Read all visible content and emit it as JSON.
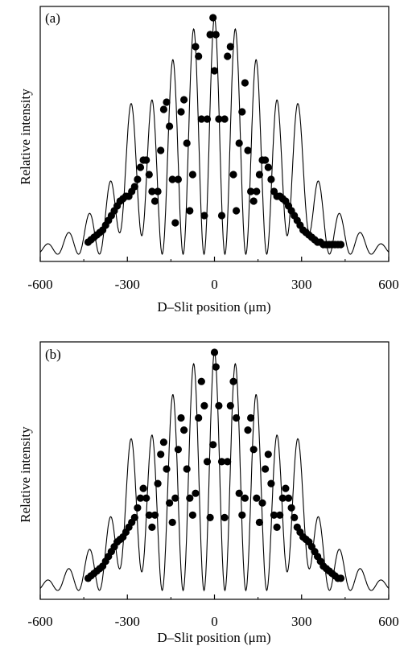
{
  "chart_data": [
    {
      "type": "scatter",
      "panel_label": "(a)",
      "xlabel": "D–Slit position (μm)",
      "ylabel": "Relative intensity",
      "xlim": [
        -600,
        600
      ],
      "ylim": [
        0,
        1.0
      ],
      "xticks": [
        -600,
        -300,
        0,
        300,
        600
      ],
      "xtick_labels": [
        "-600",
        "-300",
        "0",
        "300",
        "600"
      ],
      "grid": false,
      "series": [
        {
          "kind": "points",
          "x": [
            -435,
            -425,
            -415,
            -405,
            -395,
            -385,
            -375,
            -365,
            -355,
            -345,
            -335,
            -325,
            -315,
            -305,
            -295,
            -285,
            -275,
            -265,
            -255,
            -245,
            -235,
            -225,
            -215,
            -205,
            -195,
            -185,
            -175,
            -165,
            -155,
            -145,
            -135,
            -125,
            -115,
            -105,
            -95,
            -85,
            -75,
            -65,
            -55,
            -45,
            -35,
            -25,
            -15,
            -5,
            0,
            5,
            15,
            25,
            35,
            45,
            55,
            65,
            75,
            85,
            95,
            105,
            115,
            125,
            135,
            145,
            155,
            165,
            175,
            185,
            195,
            205,
            215,
            225,
            235,
            245,
            255,
            265,
            275,
            285,
            295,
            305,
            315,
            325,
            335,
            345,
            355,
            365,
            375,
            385,
            395,
            405,
            415,
            425,
            435
          ],
          "y": [
            0.07,
            0.08,
            0.09,
            0.1,
            0.11,
            0.12,
            0.14,
            0.16,
            0.18,
            0.2,
            0.22,
            0.24,
            0.25,
            0.26,
            0.26,
            0.28,
            0.3,
            0.33,
            0.38,
            0.41,
            0.41,
            0.35,
            0.28,
            0.24,
            0.28,
            0.45,
            0.62,
            0.65,
            0.55,
            0.33,
            0.15,
            0.33,
            0.61,
            0.66,
            0.48,
            0.2,
            0.35,
            0.88,
            0.84,
            0.58,
            0.18,
            0.58,
            0.93,
            1.0,
            0.78,
            0.93,
            0.58,
            0.18,
            0.58,
            0.84,
            0.88,
            0.35,
            0.2,
            0.48,
            0.61,
            0.73,
            0.45,
            0.28,
            0.24,
            0.28,
            0.35,
            0.41,
            0.41,
            0.38,
            0.33,
            0.28,
            0.26,
            0.26,
            0.25,
            0.24,
            0.22,
            0.2,
            0.18,
            0.16,
            0.14,
            0.12,
            0.11,
            0.1,
            0.09,
            0.08,
            0.07,
            0.07,
            0.06,
            0.06,
            0.06,
            0.06,
            0.06,
            0.06,
            0.06
          ]
        },
        {
          "kind": "curve",
          "envelope_width": 230,
          "fringe_period": 72,
          "baseline": 0.02,
          "side_bump_pos": [
            -290,
            290
          ],
          "side_bump_height": 0.18
        }
      ]
    },
    {
      "type": "scatter",
      "panel_label": "(b)",
      "xlabel": "D–Slit position (μm)",
      "ylabel": "Relative intensity",
      "xlim": [
        -600,
        600
      ],
      "ylim": [
        0,
        1.0
      ],
      "xticks": [
        -600,
        -300,
        0,
        300,
        600
      ],
      "xtick_labels": [
        "-600",
        "-300",
        "0",
        "300",
        "600"
      ],
      "grid": false,
      "series": [
        {
          "kind": "points",
          "x": [
            -435,
            -425,
            -415,
            -405,
            -395,
            -385,
            -375,
            -365,
            -355,
            -345,
            -335,
            -325,
            -315,
            -305,
            -295,
            -285,
            -275,
            -265,
            -255,
            -245,
            -235,
            -225,
            -215,
            -205,
            -195,
            -185,
            -175,
            -165,
            -155,
            -145,
            -135,
            -125,
            -115,
            -105,
            -95,
            -85,
            -75,
            -65,
            -55,
            -45,
            -35,
            -25,
            -15,
            -5,
            0,
            5,
            15,
            25,
            35,
            45,
            55,
            65,
            75,
            85,
            95,
            105,
            115,
            125,
            135,
            145,
            155,
            165,
            175,
            185,
            195,
            205,
            215,
            225,
            235,
            245,
            255,
            265,
            275,
            285,
            295,
            305,
            315,
            325,
            335,
            345,
            355,
            365,
            375,
            385,
            395,
            405,
            415,
            425,
            435
          ],
          "y": [
            0.07,
            0.08,
            0.09,
            0.1,
            0.11,
            0.12,
            0.14,
            0.16,
            0.18,
            0.2,
            0.22,
            0.23,
            0.24,
            0.26,
            0.28,
            0.3,
            0.32,
            0.36,
            0.4,
            0.44,
            0.4,
            0.33,
            0.28,
            0.33,
            0.46,
            0.58,
            0.63,
            0.52,
            0.38,
            0.3,
            0.4,
            0.6,
            0.73,
            0.68,
            0.52,
            0.4,
            0.33,
            0.42,
            0.73,
            0.88,
            0.78,
            0.55,
            0.32,
            0.62,
            1.0,
            0.94,
            0.78,
            0.55,
            0.32,
            0.55,
            0.78,
            0.88,
            0.73,
            0.42,
            0.33,
            0.4,
            0.68,
            0.73,
            0.6,
            0.4,
            0.3,
            0.38,
            0.52,
            0.58,
            0.46,
            0.33,
            0.28,
            0.33,
            0.4,
            0.44,
            0.4,
            0.36,
            0.32,
            0.28,
            0.26,
            0.24,
            0.23,
            0.22,
            0.2,
            0.18,
            0.16,
            0.14,
            0.12,
            0.11,
            0.1,
            0.09,
            0.08,
            0.07,
            0.07
          ]
        },
        {
          "kind": "curve",
          "envelope_width": 230,
          "fringe_period": 72,
          "baseline": 0.02,
          "side_bump_pos": [
            -290,
            290
          ],
          "side_bump_height": 0.18
        }
      ]
    }
  ]
}
